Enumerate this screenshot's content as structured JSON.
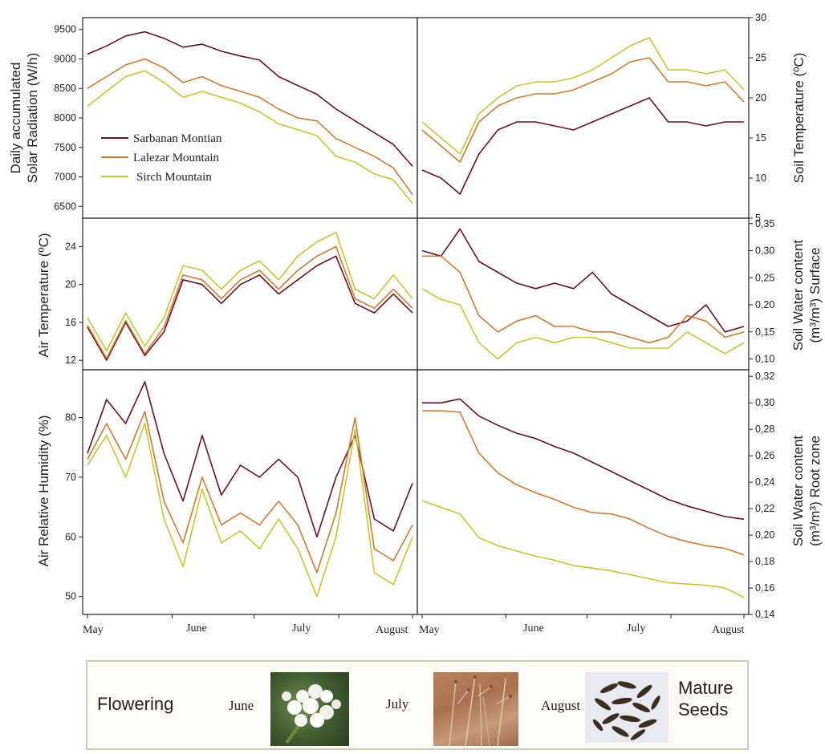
{
  "months": [
    "May",
    "June",
    "July",
    "August"
  ],
  "legend": [
    "Sarbanan Montian",
    "Lalezar Mountain",
    "Sirch Mountain"
  ],
  "colors": {
    "Sarbanan Montian": "#6b1020",
    "Lalezar Mountain": "#d9782a",
    "Sirch Mountain": "#c6c82a"
  },
  "chart_data": [
    {
      "type": "line",
      "ylabel_line1": "Daily accumulated",
      "ylabel_line2": "Solar Radiation (W/h)",
      "ylim": [
        6300,
        9700
      ],
      "yticks": [
        6500,
        7000,
        7500,
        8000,
        8500,
        9000,
        9500
      ],
      "x": [
        0,
        7,
        14,
        21,
        28,
        35,
        42,
        49,
        56,
        63,
        70,
        77,
        84,
        91,
        98,
        105,
        112,
        119
      ],
      "series": [
        {
          "name": "Sarbanan Montian",
          "values": [
            9080,
            9220,
            9390,
            9460,
            9350,
            9200,
            9250,
            9130,
            9050,
            8980,
            8700,
            8550,
            8400,
            8150,
            7950,
            7750,
            7550,
            7180
          ]
        },
        {
          "name": "Lalezar Mountain",
          "values": [
            8500,
            8700,
            8900,
            9000,
            8850,
            8600,
            8700,
            8550,
            8450,
            8350,
            8150,
            8000,
            7950,
            7650,
            7500,
            7350,
            7150,
            6700
          ]
        },
        {
          "name": "Sirch Mountain",
          "values": [
            8200,
            8450,
            8700,
            8800,
            8600,
            8350,
            8450,
            8350,
            8250,
            8100,
            7900,
            7800,
            7700,
            7350,
            7250,
            7050,
            6950,
            6550
          ]
        }
      ]
    },
    {
      "type": "line",
      "ylabel": "Soil Temperature (ºC)",
      "ylim": [
        5,
        30
      ],
      "yticks": [
        5,
        10,
        15,
        20,
        25,
        30
      ],
      "x": [
        0,
        7,
        14,
        21,
        28,
        35,
        42,
        49,
        56,
        63,
        70,
        77,
        84,
        91,
        98,
        105,
        112,
        119
      ],
      "series": [
        {
          "name": "Sarbanan Montian",
          "values": [
            11,
            10,
            8,
            13,
            16,
            17,
            17,
            16.5,
            16,
            17,
            18,
            19,
            20,
            17,
            17,
            16.5,
            17,
            17
          ]
        },
        {
          "name": "Lalezar Mountain",
          "values": [
            16,
            14,
            12,
            17,
            19,
            20,
            20.5,
            20.5,
            21,
            22,
            23,
            24.5,
            25,
            22,
            22,
            21.5,
            22,
            19.5
          ]
        },
        {
          "name": "Sirch Mountain",
          "values": [
            17,
            15,
            13,
            18,
            20,
            21.5,
            22,
            22,
            22.5,
            23.5,
            25,
            26.5,
            27.5,
            23.5,
            23.5,
            23,
            23.5,
            21
          ]
        }
      ]
    },
    {
      "type": "line",
      "ylabel": "Air Temperature (ºC)",
      "ylim": [
        11,
        27
      ],
      "yticks": [
        12,
        16,
        20,
        24
      ],
      "x": [
        0,
        7,
        14,
        21,
        28,
        35,
        42,
        49,
        56,
        63,
        70,
        77,
        84,
        91,
        98,
        105,
        112,
        119
      ],
      "series": [
        {
          "name": "Sarbanan Montian",
          "values": [
            15.5,
            12,
            16,
            12.5,
            15,
            20.5,
            20,
            18,
            20,
            21,
            19,
            20.5,
            22,
            23,
            18,
            17,
            19,
            17
          ]
        },
        {
          "name": "Lalezar Mountain",
          "values": [
            15.7,
            12.2,
            16.2,
            12.7,
            15.5,
            21,
            20.5,
            18.5,
            20.5,
            21.5,
            19.5,
            21.5,
            23,
            24,
            18.5,
            17.5,
            19.5,
            17.5
          ]
        },
        {
          "name": "Sirch Mountain",
          "values": [
            16.5,
            13,
            17,
            13.5,
            16.5,
            22,
            21.5,
            19.5,
            21.5,
            22.5,
            20.5,
            23,
            24.5,
            25.5,
            19.5,
            18.5,
            21,
            18.5
          ]
        }
      ]
    },
    {
      "type": "line",
      "ylabel_line1": "Soil Water content",
      "ylabel_line2": "(m³/m³) Surface",
      "ylim": [
        0.08,
        0.36
      ],
      "yticks": [
        0.1,
        0.15,
        0.2,
        0.25,
        0.3,
        0.35
      ],
      "ytick_labels": [
        "0,10",
        "0,15",
        "0,20",
        "0,25",
        "0,30",
        "0,35"
      ],
      "x": [
        0,
        7,
        14,
        21,
        28,
        35,
        42,
        49,
        56,
        63,
        70,
        77,
        84,
        91,
        98,
        105,
        112,
        119
      ],
      "series": [
        {
          "name": "Sarbanan Montian",
          "values": [
            0.3,
            0.29,
            0.34,
            0.28,
            0.26,
            0.24,
            0.23,
            0.24,
            0.23,
            0.26,
            0.22,
            0.2,
            0.18,
            0.16,
            0.17,
            0.2,
            0.15,
            0.16
          ]
        },
        {
          "name": "Lalezar Mountain",
          "values": [
            0.29,
            0.29,
            0.26,
            0.18,
            0.15,
            0.17,
            0.18,
            0.16,
            0.16,
            0.15,
            0.15,
            0.14,
            0.13,
            0.14,
            0.18,
            0.17,
            0.14,
            0.15
          ]
        },
        {
          "name": "Sirch Mountain",
          "values": [
            0.23,
            0.21,
            0.2,
            0.13,
            0.1,
            0.13,
            0.14,
            0.13,
            0.14,
            0.14,
            0.13,
            0.12,
            0.12,
            0.12,
            0.15,
            0.13,
            0.11,
            0.13
          ]
        }
      ]
    },
    {
      "type": "line",
      "ylabel": "Air Relative Humidity (%)",
      "ylim": [
        47,
        88
      ],
      "yticks": [
        50,
        60,
        70,
        80
      ],
      "x": [
        0,
        7,
        14,
        21,
        28,
        35,
        42,
        49,
        56,
        63,
        70,
        77,
        84,
        91,
        98,
        105,
        112,
        119
      ],
      "series": [
        {
          "name": "Sarbanan Montian",
          "values": [
            74,
            83,
            79,
            86,
            74,
            66,
            77,
            67,
            72,
            70,
            73,
            70,
            60,
            70,
            77,
            63,
            61,
            69
          ]
        },
        {
          "name": "Lalezar Mountain",
          "values": [
            73,
            79,
            73,
            81,
            66,
            59,
            70,
            62,
            64,
            62,
            66,
            62,
            54,
            64,
            80,
            58,
            56,
            62
          ]
        },
        {
          "name": "Sirch Mountain",
          "values": [
            72,
            77,
            70,
            79,
            63,
            55,
            68,
            59,
            61,
            58,
            63,
            58,
            50,
            60,
            78,
            54,
            52,
            60
          ]
        }
      ]
    },
    {
      "type": "line",
      "ylabel_line1": "Soil Water content",
      "ylabel_line2": "(m³/m³) Root zone",
      "ylim": [
        0.14,
        0.325
      ],
      "yticks": [
        0.14,
        0.16,
        0.18,
        0.2,
        0.22,
        0.24,
        0.26,
        0.28,
        0.3,
        0.32
      ],
      "ytick_labels": [
        "0,14",
        "0,16",
        "0,18",
        "0,20",
        "0,22",
        "0,24",
        "0,26",
        "0,28",
        "0,30",
        "0,32"
      ],
      "x": [
        0,
        7,
        14,
        21,
        28,
        35,
        42,
        49,
        56,
        63,
        70,
        77,
        84,
        91,
        98,
        105,
        112,
        119
      ],
      "series": [
        {
          "name": "Sarbanan Montian",
          "values": [
            0.3,
            0.3,
            0.303,
            0.29,
            0.283,
            0.277,
            0.273,
            0.267,
            0.262,
            0.255,
            0.248,
            0.241,
            0.234,
            0.227,
            0.222,
            0.218,
            0.214,
            0.212
          ]
        },
        {
          "name": "Lalezar Mountain",
          "values": [
            0.294,
            0.294,
            0.293,
            0.262,
            0.247,
            0.238,
            0.232,
            0.227,
            0.221,
            0.217,
            0.216,
            0.212,
            0.205,
            0.199,
            0.195,
            0.192,
            0.19,
            0.185
          ]
        },
        {
          "name": "Sirch Mountain",
          "values": [
            0.226,
            0.221,
            0.216,
            0.198,
            0.192,
            0.188,
            0.184,
            0.181,
            0.177,
            0.175,
            0.173,
            0.17,
            0.167,
            0.164,
            0.163,
            0.162,
            0.16,
            0.153
          ]
        }
      ]
    }
  ],
  "phenology": {
    "flowering": "Flowering",
    "june": "June",
    "july": "July",
    "august": "August",
    "mature_line1": "Mature",
    "mature_line2": "Seeds"
  }
}
